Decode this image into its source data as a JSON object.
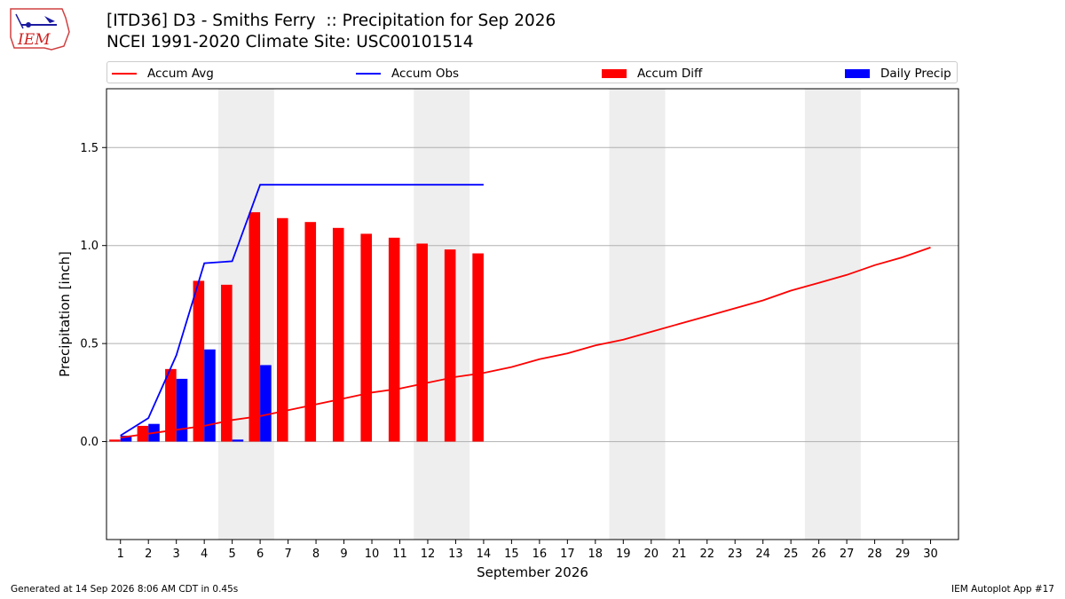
{
  "header": {
    "title_line1": "[ITD36] D3 - Smiths Ferry  :: Precipitation for Sep 2026",
    "title_line2": "NCEI 1991-2020 Climate Site: USC00101514",
    "logo_text": "IEM"
  },
  "legend": [
    {
      "label": "Accum Avg",
      "kind": "line",
      "color": "#ff0000"
    },
    {
      "label": "Accum Obs",
      "kind": "line",
      "color": "#0000ff"
    },
    {
      "label": "Accum Diff",
      "kind": "bar",
      "color": "#ff0000"
    },
    {
      "label": "Daily Precip",
      "kind": "bar",
      "color": "#0000ff"
    }
  ],
  "footer": {
    "generated": "Generated at 14 Sep 2026 8:06 AM CDT in 0.45s",
    "app": "IEM Autoplot App #17"
  },
  "chart_data": {
    "type": "bar",
    "xlabel": "September 2026",
    "ylabel": "Precipitation [inch]",
    "xlim": [
      0.5,
      31.0
    ],
    "ylim": [
      -0.5,
      1.8
    ],
    "yticks": [
      0.0,
      0.5,
      1.0,
      1.5
    ],
    "ytick_labels": [
      "0.0",
      "0.5",
      "1.0",
      "1.5"
    ],
    "xticks": [
      1,
      2,
      3,
      4,
      5,
      6,
      7,
      8,
      9,
      10,
      11,
      12,
      13,
      14,
      15,
      16,
      17,
      18,
      19,
      20,
      21,
      22,
      23,
      24,
      25,
      26,
      27,
      28,
      29,
      30
    ],
    "grid": "horizontal",
    "legend_position": "top",
    "weekend_shading": [
      [
        4.5,
        6.5
      ],
      [
        11.5,
        13.5
      ],
      [
        18.5,
        20.5
      ],
      [
        25.5,
        27.5
      ]
    ],
    "series": [
      {
        "name": "Accum Avg",
        "type": "line",
        "color": "#ff0000",
        "x": [
          1,
          2,
          3,
          4,
          5,
          6,
          7,
          8,
          9,
          10,
          11,
          12,
          13,
          14,
          15,
          16,
          17,
          18,
          19,
          20,
          21,
          22,
          23,
          24,
          25,
          26,
          27,
          28,
          29,
          30
        ],
        "values": [
          0.02,
          0.04,
          0.06,
          0.08,
          0.11,
          0.13,
          0.16,
          0.19,
          0.22,
          0.25,
          0.27,
          0.3,
          0.33,
          0.35,
          0.38,
          0.42,
          0.45,
          0.49,
          0.52,
          0.56,
          0.6,
          0.64,
          0.68,
          0.72,
          0.77,
          0.81,
          0.85,
          0.9,
          0.94,
          0.99
        ]
      },
      {
        "name": "Accum Obs",
        "type": "line",
        "color": "#0000ff",
        "x": [
          1,
          2,
          3,
          4,
          5,
          6,
          7,
          8,
          9,
          10,
          11,
          12,
          13,
          14
        ],
        "values": [
          0.03,
          0.12,
          0.44,
          0.91,
          0.92,
          1.31,
          1.31,
          1.31,
          1.31,
          1.31,
          1.31,
          1.31,
          1.31,
          1.31
        ]
      },
      {
        "name": "Accum Diff",
        "type": "bar",
        "color": "#ff0000",
        "x": [
          1,
          2,
          3,
          4,
          5,
          6,
          7,
          8,
          9,
          10,
          11,
          12,
          13,
          14
        ],
        "values": [
          0.01,
          0.08,
          0.37,
          0.82,
          0.8,
          1.17,
          1.14,
          1.12,
          1.09,
          1.06,
          1.04,
          1.01,
          0.98,
          0.96
        ]
      },
      {
        "name": "Daily Precip",
        "type": "bar",
        "color": "#0000ff",
        "x": [
          1,
          2,
          3,
          4,
          5,
          6,
          7,
          8,
          9,
          10,
          11,
          12,
          13,
          14
        ],
        "values": [
          0.03,
          0.09,
          0.32,
          0.47,
          0.01,
          0.39,
          0,
          0,
          0,
          0,
          0,
          0,
          0,
          0
        ]
      }
    ]
  }
}
